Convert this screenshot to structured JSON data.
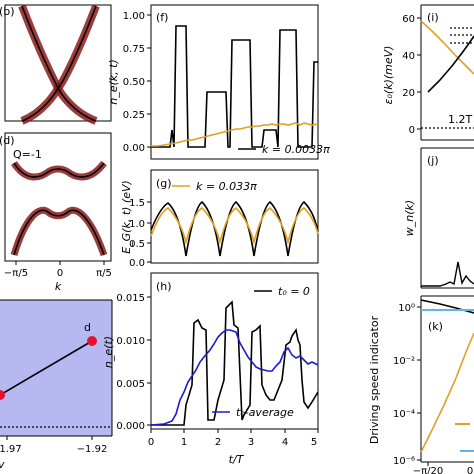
{
  "colors": {
    "black": "#000000",
    "orange": "#e0a020",
    "blue": "#1a1ad0",
    "red": "#8b1a1a",
    "shade": "#b7b8f2"
  },
  "panels": {
    "b": {
      "label": "(b)"
    },
    "d": {
      "label": "(d)",
      "annotation": "Q=-1",
      "xticks": [
        "−π/5",
        "0",
        "π/5"
      ],
      "xlabel": "k"
    },
    "c": {
      "point_label": "d",
      "xticks": [
        "−1.97",
        "−1.92"
      ],
      "xlabel_fragment": "v"
    },
    "f": {
      "label": "(f)",
      "ylabel": "n_e(k, t)",
      "yticks": [
        "0.00",
        "0.25",
        "0.50",
        "0.75",
        "1.00"
      ],
      "legend": "k = 0.0033π"
    },
    "g": {
      "label": "(g)",
      "ylabel": "E_G(k, t) (eV)",
      "yticks": [
        "0.0",
        "0.5",
        "1.0",
        "1.5"
      ],
      "legend": "k = 0.033π"
    },
    "h": {
      "label": "(h)",
      "ylabel": "n_e(t)",
      "yticks": [
        "0.000",
        "0.005",
        "0.010",
        "0.015"
      ],
      "xticks": [
        "0",
        "1",
        "2",
        "3",
        "4",
        "5"
      ],
      "xlabel": "t/T",
      "legend_top": "t₀ = 0",
      "legend_bottom": "t₀-average"
    },
    "i": {
      "label": "(i)",
      "ylabel": "ε₀(k)(meV)",
      "yticks": [
        "0",
        "20",
        "40",
        "60"
      ],
      "annotation": "1.2T"
    },
    "j": {
      "label": "(j)",
      "ylabel": "w_n(k)"
    },
    "k": {
      "label": "(k)",
      "ylabel": "Driving speed indicator",
      "yticks": [
        "10⁰",
        "10⁻²",
        "10⁻⁴",
        "10⁻⁶"
      ],
      "xticks": [
        "−π/20"
      ],
      "xtick_partial": "0"
    }
  }
}
